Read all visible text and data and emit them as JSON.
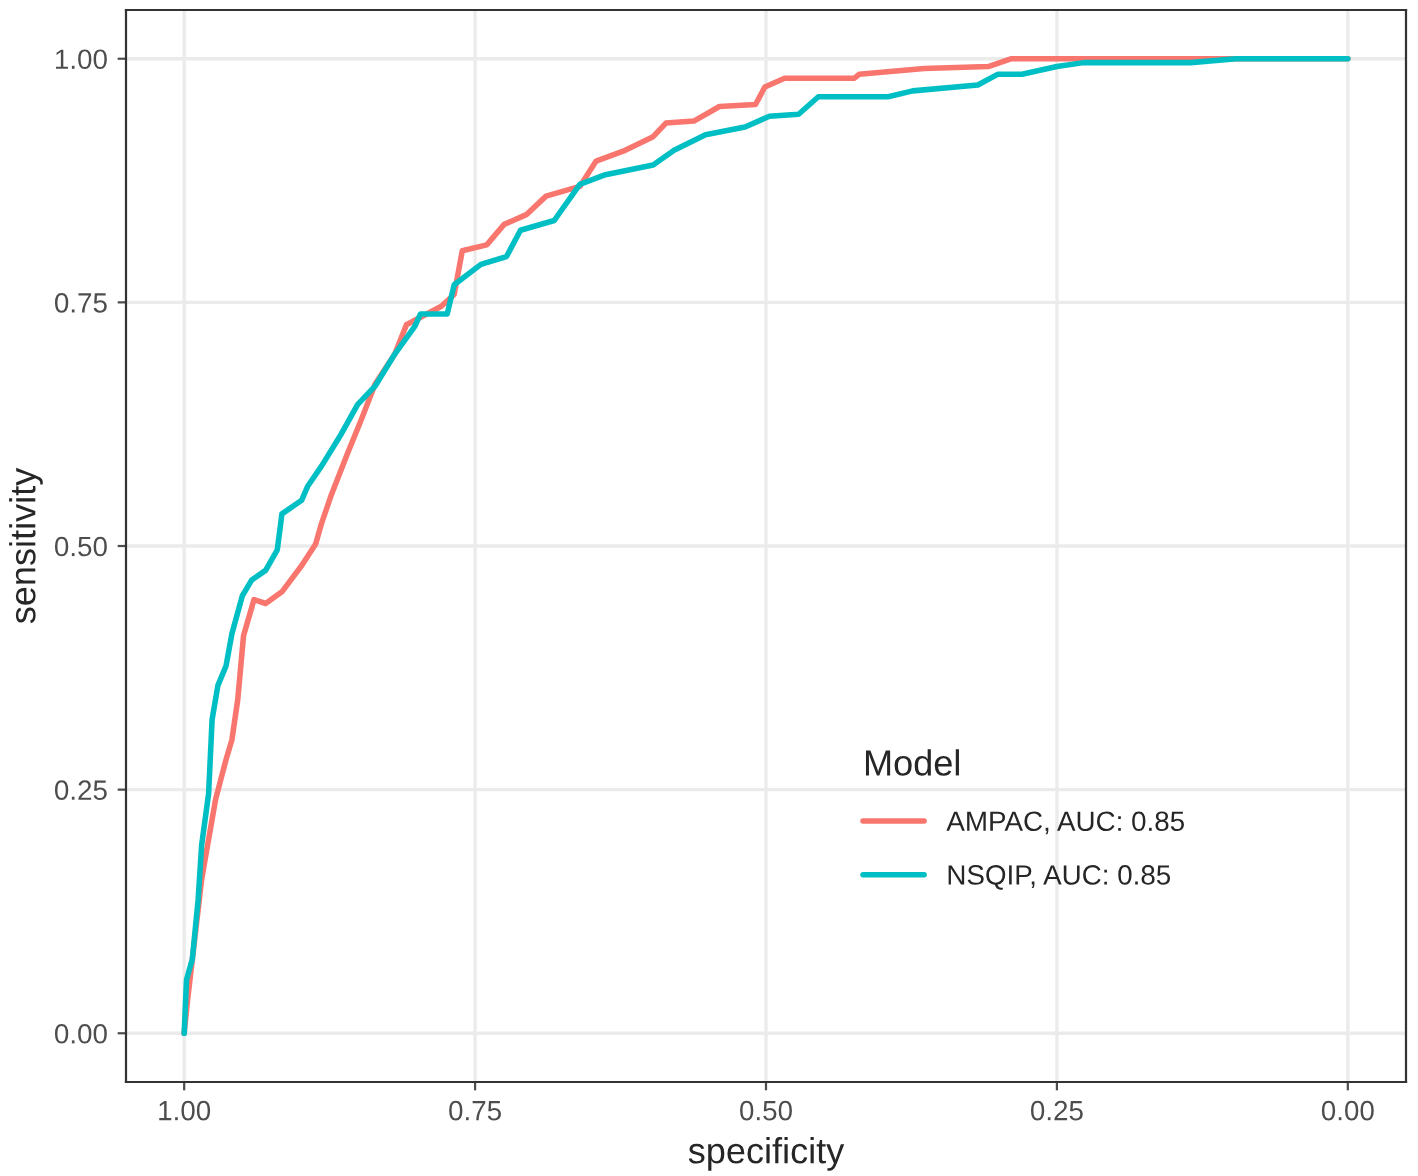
{
  "chart_data": {
    "type": "line",
    "xlabel": "specificity",
    "ylabel": "sensitivity",
    "legend_title": "Model",
    "xlim": [
      1.05,
      -0.05
    ],
    "ylim": [
      -0.05,
      1.05
    ],
    "xticks": [
      {
        "value": 1,
        "label": "1.00"
      },
      {
        "value": 0.75,
        "label": "0.75"
      },
      {
        "value": 0.5,
        "label": "0.50"
      },
      {
        "value": 0.25,
        "label": "0.25"
      },
      {
        "value": 0,
        "label": "0.00"
      }
    ],
    "yticks": [
      {
        "value": 0,
        "label": "0.00"
      },
      {
        "value": 0.25,
        "label": "0.25"
      },
      {
        "value": 0.5,
        "label": "0.50"
      },
      {
        "value": 0.75,
        "label": "0.75"
      },
      {
        "value": 1,
        "label": "1.00"
      }
    ],
    "grid": true,
    "legend": "bottom right",
    "line_style": "solid",
    "marker": "none",
    "series": [
      {
        "name": "AMPAC, AUC: 0.85",
        "color": "#f8766d",
        "x": [
          1.0,
          0.997,
          0.991,
          0.985,
          0.979,
          0.973,
          0.964,
          0.959,
          0.954,
          0.949,
          0.94,
          0.93,
          0.916,
          0.899,
          0.887,
          0.882,
          0.874,
          0.86,
          0.848,
          0.836,
          0.819,
          0.809,
          0.779,
          0.768,
          0.761,
          0.74,
          0.725,
          0.706,
          0.689,
          0.66,
          0.646,
          0.621,
          0.597,
          0.586,
          0.562,
          0.54,
          0.509,
          0.501,
          0.484,
          0.424,
          0.42,
          0.364,
          0.309,
          0.289,
          0.0
        ],
        "values": [
          0.0,
          0.035,
          0.096,
          0.158,
          0.199,
          0.24,
          0.281,
          0.301,
          0.342,
          0.408,
          0.445,
          0.441,
          0.453,
          0.48,
          0.502,
          0.523,
          0.551,
          0.594,
          0.629,
          0.666,
          0.697,
          0.727,
          0.746,
          0.758,
          0.803,
          0.809,
          0.83,
          0.84,
          0.859,
          0.869,
          0.895,
          0.906,
          0.92,
          0.934,
          0.936,
          0.951,
          0.953,
          0.971,
          0.98,
          0.98,
          0.984,
          0.99,
          0.992,
          1.0,
          1.0
        ]
      },
      {
        "name": "NSQIP, AUC: 0.85",
        "color": "#00bfc4",
        "x": [
          1.0,
          0.998,
          0.993,
          0.988,
          0.985,
          0.979,
          0.976,
          0.971,
          0.964,
          0.959,
          0.95,
          0.942,
          0.93,
          0.92,
          0.916,
          0.899,
          0.894,
          0.882,
          0.865,
          0.851,
          0.836,
          0.819,
          0.802,
          0.797,
          0.774,
          0.768,
          0.745,
          0.723,
          0.711,
          0.682,
          0.66,
          0.638,
          0.597,
          0.579,
          0.552,
          0.518,
          0.497,
          0.472,
          0.455,
          0.395,
          0.374,
          0.318,
          0.301,
          0.28,
          0.25,
          0.227,
          0.135,
          0.096,
          0.0
        ],
        "values": [
          0.0,
          0.055,
          0.076,
          0.137,
          0.193,
          0.246,
          0.322,
          0.357,
          0.377,
          0.41,
          0.449,
          0.465,
          0.475,
          0.496,
          0.533,
          0.547,
          0.561,
          0.582,
          0.615,
          0.645,
          0.664,
          0.697,
          0.725,
          0.738,
          0.738,
          0.768,
          0.789,
          0.797,
          0.824,
          0.834,
          0.871,
          0.881,
          0.891,
          0.906,
          0.922,
          0.93,
          0.941,
          0.943,
          0.961,
          0.961,
          0.967,
          0.973,
          0.984,
          0.984,
          0.992,
          0.996,
          0.996,
          1.0,
          1.0
        ]
      }
    ]
  }
}
